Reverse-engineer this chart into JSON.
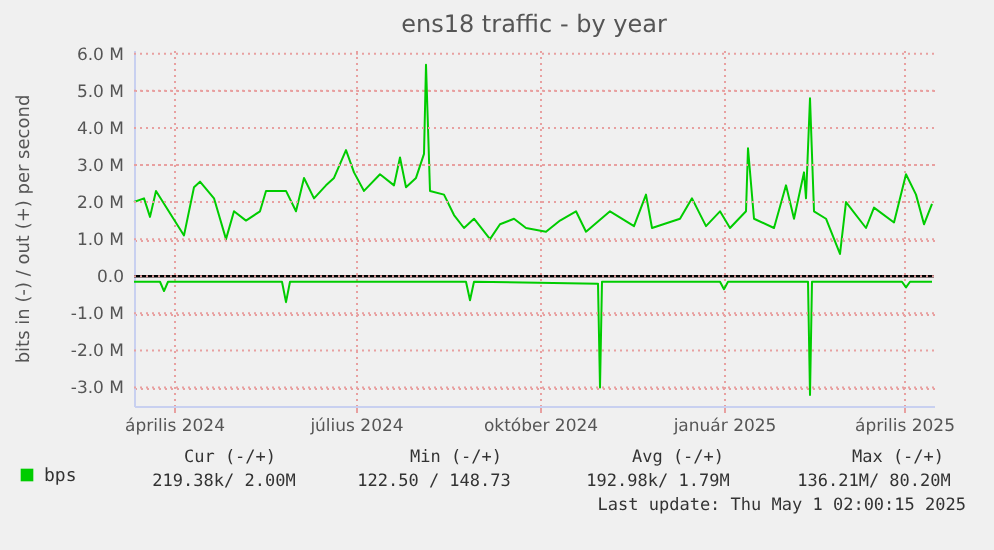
{
  "chart_data": {
    "type": "line",
    "title": "ens18 traffic - by year",
    "ylabel": "bits in (-) / out (+) per second",
    "xlim": [
      "2024-03-27",
      "2025-05-01"
    ],
    "xticks": [
      {
        "value": "2024-04-16",
        "label": "április 2024"
      },
      {
        "value": "2024-07-16",
        "label": "július 2024"
      },
      {
        "value": "2024-10-16",
        "label": "október 2024"
      },
      {
        "value": "2025-01-16",
        "label": "január 2025"
      },
      {
        "value": "2025-04-16",
        "label": "április 2025"
      }
    ],
    "ylim": [
      -3.5,
      6.1
    ],
    "yticks": [
      {
        "value": -3,
        "label": "-3.0 M"
      },
      {
        "value": -2,
        "label": "-2.0 M"
      },
      {
        "value": -1,
        "label": "-1.0 M"
      },
      {
        "value": 0,
        "label": "0.0"
      },
      {
        "value": 1,
        "label": "1.0 M"
      },
      {
        "value": 2,
        "label": "2.0 M"
      },
      {
        "value": 3,
        "label": "3.0 M"
      },
      {
        "value": 4,
        "label": "4.0 M"
      },
      {
        "value": 5,
        "label": "5.0 M"
      },
      {
        "value": 6,
        "label": "6.0 M"
      }
    ],
    "grid": true,
    "legend": "bottom left",
    "marker": "none",
    "line_style": "solid",
    "ref_lines": [
      {
        "axis": "y",
        "value": 0,
        "color": "#000000"
      }
    ],
    "series": [
      {
        "name": "bps",
        "color": "#00cc00",
        "x": [
          "2024-03-27",
          "2024-04-01",
          "2024-04-04",
          "2024-04-07",
          "2024-04-14",
          "2024-04-21",
          "2024-04-26",
          "2024-04-29",
          "2024-05-06",
          "2024-05-12",
          "2024-05-16",
          "2024-05-22",
          "2024-05-29",
          "2024-06-01",
          "2024-06-11",
          "2024-06-16",
          "2024-06-20",
          "2024-06-25",
          "2024-07-01",
          "2024-07-05",
          "2024-07-11",
          "2024-07-15",
          "2024-07-20",
          "2024-07-28",
          "2024-08-04",
          "2024-08-07",
          "2024-08-10",
          "2024-08-15",
          "2024-08-19",
          "2024-08-20",
          "2024-08-22",
          "2024-08-29",
          "2024-09-03",
          "2024-09-08",
          "2024-09-13",
          "2024-09-21",
          "2024-09-26",
          "2024-10-03",
          "2024-10-09",
          "2024-10-19",
          "2024-10-26",
          "2024-11-03",
          "2024-11-08",
          "2024-11-20",
          "2024-12-02",
          "2024-12-08",
          "2024-12-11",
          "2024-12-25",
          "2024-12-31",
          "2025-01-07",
          "2025-01-14",
          "2025-01-19",
          "2025-01-27",
          "2025-01-28",
          "2025-01-31",
          "2025-02-10",
          "2025-02-16",
          "2025-02-20",
          "2025-02-25",
          "2025-02-26",
          "2025-02-28",
          "2025-03-02",
          "2025-03-08",
          "2025-03-15",
          "2025-03-18",
          "2025-03-28",
          "2025-04-01",
          "2025-04-11",
          "2025-04-17",
          "2025-04-22",
          "2025-04-26",
          "2025-04-30"
        ],
        "values": [
          2.0,
          2.1,
          1.6,
          2.3,
          1.7,
          1.1,
          2.4,
          2.55,
          2.1,
          1.0,
          1.75,
          1.5,
          1.75,
          2.3,
          2.3,
          1.75,
          2.65,
          2.1,
          2.45,
          2.65,
          3.4,
          2.8,
          2.3,
          2.75,
          2.45,
          3.2,
          2.4,
          2.65,
          3.3,
          5.7,
          2.3,
          2.2,
          1.65,
          1.3,
          1.55,
          1.0,
          1.4,
          1.55,
          1.3,
          1.2,
          1.5,
          1.75,
          1.2,
          1.75,
          1.35,
          2.2,
          1.3,
          1.55,
          2.1,
          1.35,
          1.75,
          1.3,
          1.75,
          3.45,
          1.55,
          1.3,
          2.45,
          1.55,
          2.8,
          2.1,
          4.8,
          1.75,
          1.55,
          0.6,
          2.0,
          1.3,
          1.85,
          1.45,
          2.75,
          2.2,
          1.4,
          1.95
        ]
      },
      {
        "color": "#00cc00",
        "x": [
          "2024-03-27",
          "2024-04-09",
          "2024-04-11",
          "2024-04-13",
          "2024-06-09",
          "2024-06-11",
          "2024-06-13",
          "2024-09-09",
          "2024-09-11",
          "2024-09-13",
          "2024-11-14",
          "2024-11-15",
          "2024-11-16",
          "2025-01-14",
          "2025-01-16",
          "2025-01-18",
          "2025-02-27",
          "2025-02-28",
          "2025-03-01",
          "2025-04-15",
          "2025-04-17",
          "2025-04-19",
          "2025-04-30"
        ],
        "values": [
          -0.15,
          -0.15,
          -0.4,
          -0.15,
          -0.15,
          -0.7,
          -0.15,
          -0.15,
          -0.65,
          -0.15,
          -0.2,
          -3.0,
          -0.15,
          -0.15,
          -0.35,
          -0.15,
          -0.15,
          -3.2,
          -0.15,
          -0.15,
          -0.3,
          -0.15,
          -0.15
        ]
      }
    ],
    "annotations": [
      "Cur (-/+)",
      "Min (-/+)",
      "Avg (-/+)",
      "Max (-/+)",
      "219.38k/   2.00M",
      "122.50 / 148.73",
      "192.98k/   1.79M",
      "136.21M/  80.20M",
      "Last update: Thu May  1 02:00:15 2025"
    ]
  }
}
